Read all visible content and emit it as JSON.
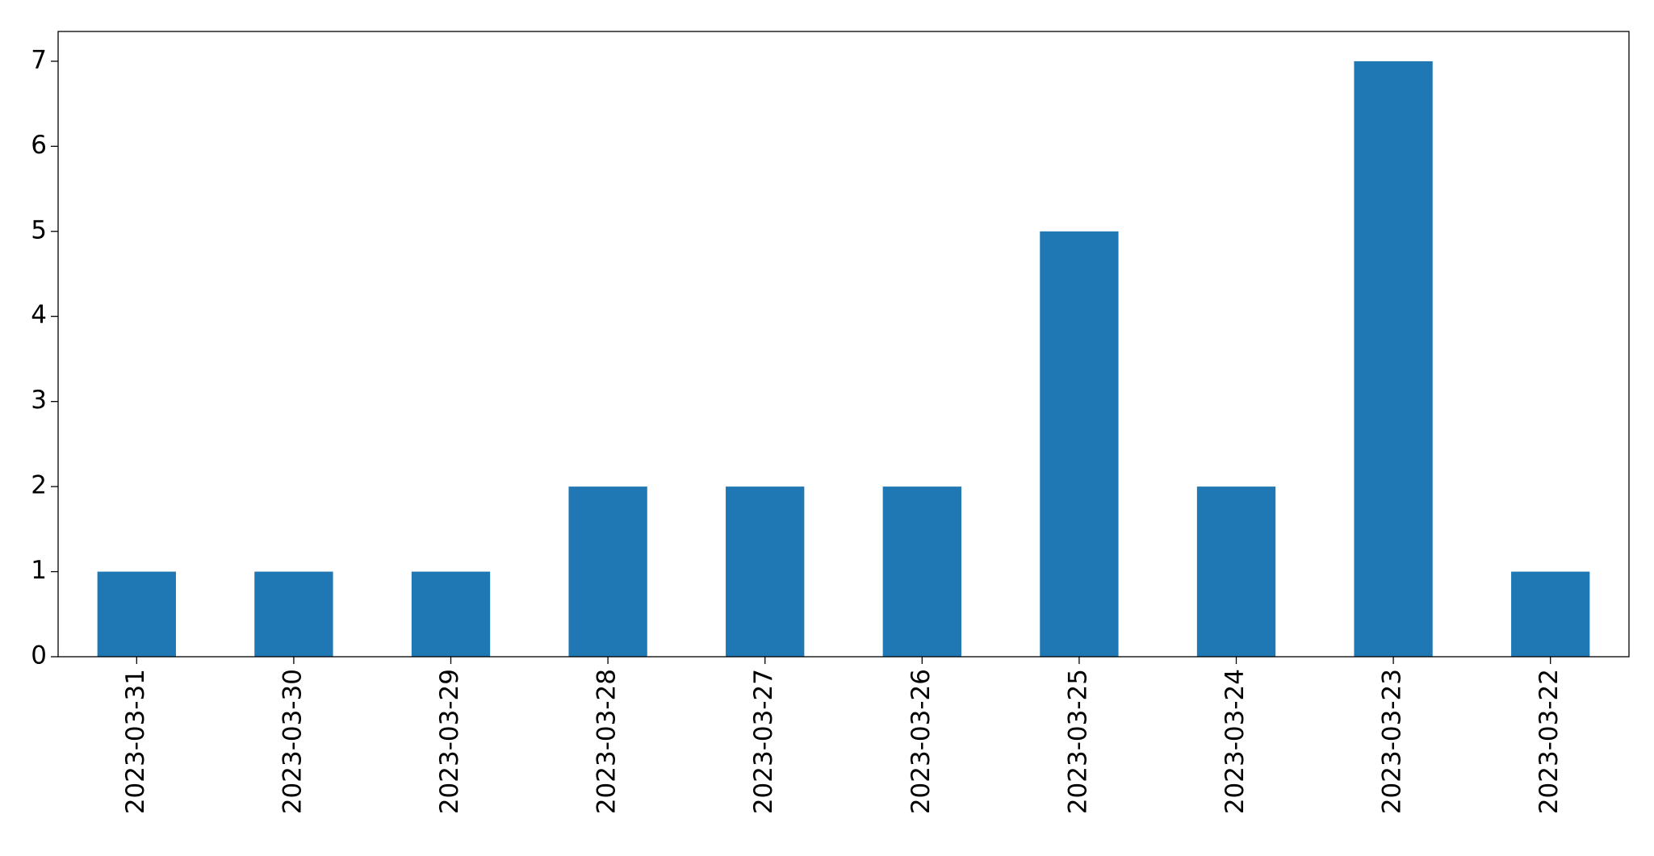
{
  "chart_data": {
    "type": "bar",
    "categories": [
      "2023-03-31",
      "2023-03-30",
      "2023-03-29",
      "2023-03-28",
      "2023-03-27",
      "2023-03-26",
      "2023-03-25",
      "2023-03-24",
      "2023-03-23",
      "2023-03-22"
    ],
    "values": [
      1,
      1,
      1,
      2,
      2,
      2,
      5,
      2,
      7,
      1
    ],
    "color": "#1f77b4",
    "ylim": [
      0,
      7.35
    ],
    "yticks": [
      0,
      1,
      2,
      3,
      4,
      5,
      6,
      7
    ],
    "grid": false
  }
}
